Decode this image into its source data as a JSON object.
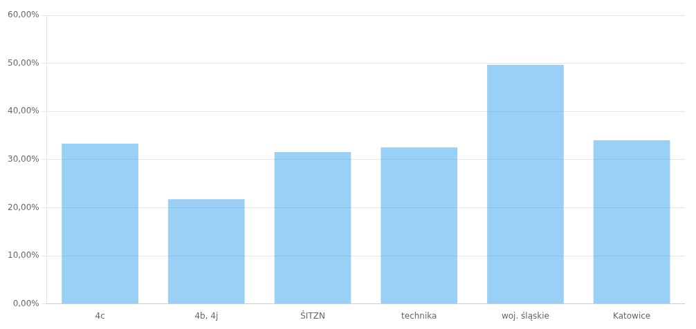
{
  "chart_data": {
    "type": "bar",
    "categories": [
      "4c",
      "4b, 4j",
      "ŚITZN",
      "technika",
      "woj. śląskie",
      "Katowice"
    ],
    "values": [
      0.3333,
      0.2174,
      0.3158,
      0.3253,
      0.4972,
      0.34
    ],
    "ylim": [
      0,
      0.6
    ],
    "yticks": [
      {
        "value": 0.0,
        "label": "0,00%"
      },
      {
        "value": 0.1,
        "label": "10,00%"
      },
      {
        "value": 0.2,
        "label": "20,00%"
      },
      {
        "value": 0.3,
        "label": "30,00%"
      },
      {
        "value": 0.4,
        "label": "40,00%"
      },
      {
        "value": 0.5,
        "label": "50,00%"
      },
      {
        "value": 0.6,
        "label": "60,00%"
      }
    ],
    "grid": true
  }
}
